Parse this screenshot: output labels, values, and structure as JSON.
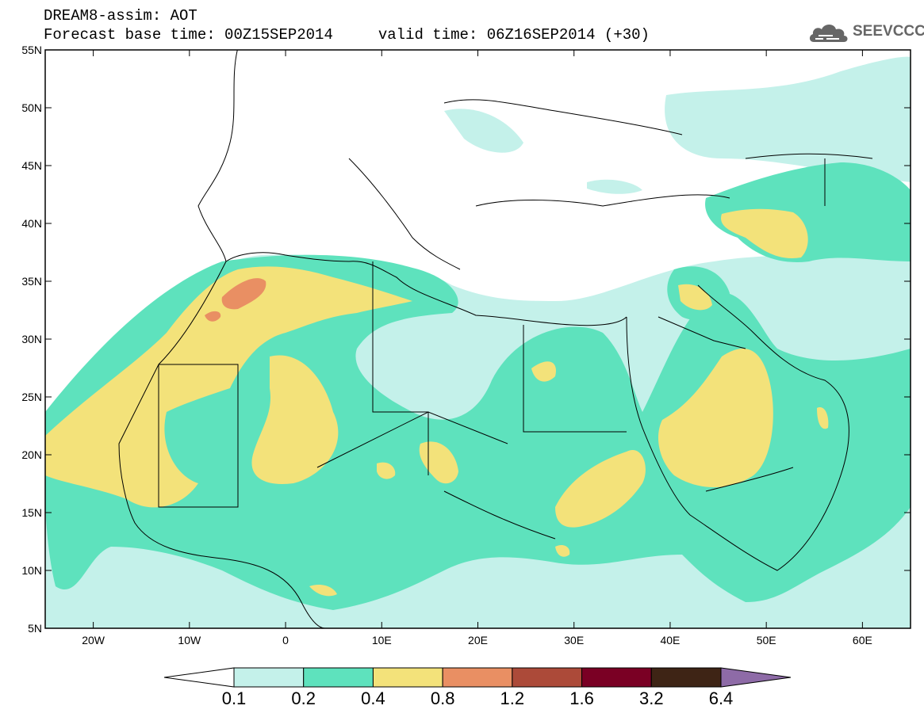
{
  "title": {
    "line1": "DREAM8-assim: AOT",
    "line2": "Forecast base time: 00Z15SEP2014     valid time: 06Z16SEP2014 (+30)"
  },
  "logo": {
    "text": "SEEVCCC",
    "icon": "cloud-icon"
  },
  "map": {
    "lon_range": [
      -25,
      65
    ],
    "lat_range": [
      5,
      55
    ],
    "lat_ticks": [
      {
        "lat": 55,
        "label": "55N"
      },
      {
        "lat": 50,
        "label": "50N"
      },
      {
        "lat": 45,
        "label": "45N"
      },
      {
        "lat": 40,
        "label": "40N"
      },
      {
        "lat": 35,
        "label": "35N"
      },
      {
        "lat": 30,
        "label": "30N"
      },
      {
        "lat": 25,
        "label": "25N"
      },
      {
        "lat": 20,
        "label": "20N"
      },
      {
        "lat": 15,
        "label": "15N"
      },
      {
        "lat": 10,
        "label": "10N"
      },
      {
        "lat": 5,
        "label": "5N"
      }
    ],
    "lon_ticks": [
      {
        "lon": -20,
        "label": "20W"
      },
      {
        "lon": -10,
        "label": "10W"
      },
      {
        "lon": 0,
        "label": "0"
      },
      {
        "lon": 10,
        "label": "10E"
      },
      {
        "lon": 20,
        "label": "20E"
      },
      {
        "lon": 30,
        "label": "30E"
      },
      {
        "lon": 40,
        "label": "40E"
      },
      {
        "lon": 50,
        "label": "50E"
      },
      {
        "lon": 60,
        "label": "60E"
      }
    ]
  },
  "colorbar": {
    "colors": [
      "#ffffff",
      "#c4f1ea",
      "#5ee2bd",
      "#f3e27a",
      "#e98f63",
      "#ac4a39",
      "#7a0024",
      "#3e2415",
      "#8e6ba7"
    ],
    "labels": [
      "0.1",
      "0.2",
      "0.4",
      "0.8",
      "1.2",
      "1.6",
      "3.2",
      "6.4"
    ]
  }
}
